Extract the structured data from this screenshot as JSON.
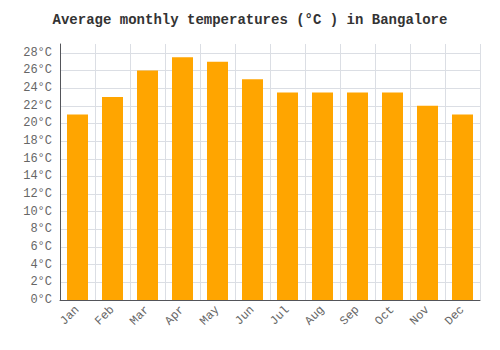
{
  "chart_data": {
    "type": "bar",
    "title": "Average monthly temperatures (°C ) in Bangalore",
    "categories": [
      "Jan",
      "Feb",
      "Mar",
      "Apr",
      "May",
      "Jun",
      "Jul",
      "Aug",
      "Sep",
      "Oct",
      "Nov",
      "Dec"
    ],
    "values": [
      21,
      23,
      26,
      27.5,
      27,
      25,
      23.5,
      23.5,
      23.5,
      23.5,
      22,
      21
    ],
    "color": "#FFA500",
    "ylim": [
      0,
      29
    ],
    "yticks": [
      {
        "value": 0,
        "label": "0°C"
      },
      {
        "value": 2,
        "label": "2°C"
      },
      {
        "value": 4,
        "label": "4°C"
      },
      {
        "value": 6,
        "label": "6°C"
      },
      {
        "value": 8,
        "label": "8°C"
      },
      {
        "value": 10,
        "label": "10°C"
      },
      {
        "value": 12,
        "label": "12°C"
      },
      {
        "value": 14,
        "label": "14°C"
      },
      {
        "value": 16,
        "label": "16°C"
      },
      {
        "value": 18,
        "label": "18°C"
      },
      {
        "value": 20,
        "label": "20°C"
      },
      {
        "value": 22,
        "label": "22°C"
      },
      {
        "value": 24,
        "label": "24°C"
      },
      {
        "value": 26,
        "label": "26°C"
      },
      {
        "value": 28,
        "label": "28°C"
      }
    ],
    "grid": true
  }
}
